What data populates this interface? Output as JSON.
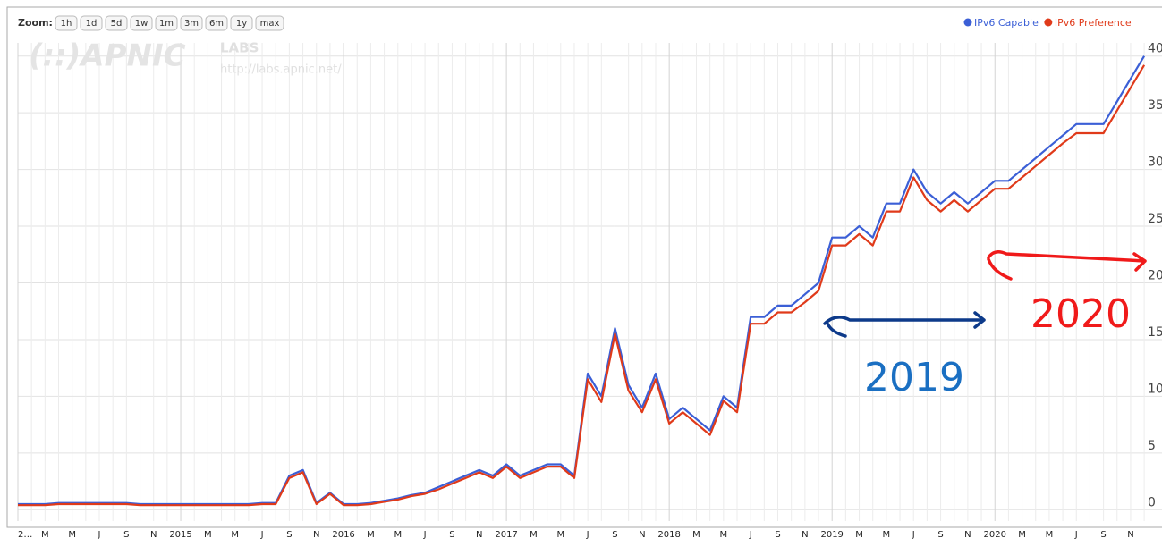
{
  "chart_data": {
    "type": "line",
    "zoom_label": "Zoom:",
    "zoom_buttons": [
      "1h",
      "1d",
      "5d",
      "1w",
      "1m",
      "3m",
      "6m",
      "1y",
      "max"
    ],
    "watermark": {
      "logo": "(::)APNIC",
      "labs": "LABS",
      "url": "http://labs.apnic.net/"
    },
    "annotations": [
      {
        "text": "2019",
        "color": "#1a6fc2"
      },
      {
        "text": "2020",
        "color": "#f01a1a"
      }
    ],
    "categories": [
      "2…",
      null,
      "M",
      null,
      "M",
      null,
      "J",
      null,
      "S",
      null,
      "N",
      null,
      "2015",
      null,
      "M",
      null,
      "M",
      null,
      "J",
      null,
      "S",
      null,
      "N",
      null,
      "2016",
      null,
      "M",
      null,
      "M",
      null,
      "J",
      null,
      "S",
      null,
      "N",
      null,
      "2017",
      null,
      "M",
      null,
      "M",
      null,
      "J",
      null,
      "S",
      null,
      "N",
      null,
      "2018",
      null,
      "M",
      null,
      "M",
      null,
      "J",
      null,
      "S",
      null,
      "N",
      null,
      "2019",
      null,
      "M",
      null,
      "M",
      null,
      "J",
      null,
      "S",
      null,
      "N",
      null,
      "2020",
      null,
      "M",
      null,
      "M",
      null,
      "J",
      null,
      "S",
      null,
      "N",
      null
    ],
    "series": [
      {
        "name": "IPv6 Capable",
        "color": "#3b5fd6",
        "values": [
          0.5,
          0.5,
          0.5,
          0.6,
          0.6,
          0.6,
          0.6,
          0.6,
          0.6,
          0.5,
          0.5,
          0.5,
          0.5,
          0.5,
          0.5,
          0.5,
          0.5,
          0.5,
          0.6,
          0.6,
          3,
          3.5,
          0.6,
          1.5,
          0.5,
          0.5,
          0.6,
          0.8,
          1,
          1.3,
          1.5,
          2,
          2.5,
          3,
          3.5,
          3,
          4,
          3,
          3.5,
          4,
          4,
          3,
          12,
          10,
          16,
          11,
          9,
          12,
          8,
          9,
          8,
          7,
          10,
          9,
          17,
          17,
          18,
          18,
          19,
          20,
          24,
          24,
          25,
          24,
          27,
          27,
          30,
          28,
          27,
          28,
          27,
          28,
          29,
          29,
          30,
          31,
          32,
          33,
          34,
          34,
          34,
          36,
          38,
          40
        ]
      },
      {
        "name": "IPv6 Preference",
        "color": "#e03a1a",
        "values": [
          0.4,
          0.4,
          0.4,
          0.5,
          0.5,
          0.5,
          0.5,
          0.5,
          0.5,
          0.4,
          0.4,
          0.4,
          0.4,
          0.4,
          0.4,
          0.4,
          0.4,
          0.4,
          0.5,
          0.5,
          2.8,
          3.3,
          0.5,
          1.4,
          0.4,
          0.4,
          0.5,
          0.7,
          0.9,
          1.2,
          1.4,
          1.8,
          2.3,
          2.8,
          3.3,
          2.8,
          3.8,
          2.8,
          3.3,
          3.8,
          3.8,
          2.8,
          11.5,
          9.5,
          15.5,
          10.5,
          8.6,
          11.5,
          7.6,
          8.6,
          7.6,
          6.6,
          9.6,
          8.6,
          16.4,
          16.4,
          17.4,
          17.4,
          18.3,
          19.3,
          23.3,
          23.3,
          24.3,
          23.3,
          26.3,
          26.3,
          29.3,
          27.3,
          26.3,
          27.3,
          26.3,
          27.3,
          28.3,
          28.3,
          29.3,
          30.3,
          31.3,
          32.3,
          33.2,
          33.2,
          33.2,
          35.2,
          37.2,
          39.2
        ]
      }
    ],
    "ylim": [
      -1,
      41
    ],
    "yticks": [
      0,
      5,
      10,
      15,
      20,
      25,
      30,
      35,
      40
    ],
    "grid": true,
    "legend": "top-right"
  }
}
